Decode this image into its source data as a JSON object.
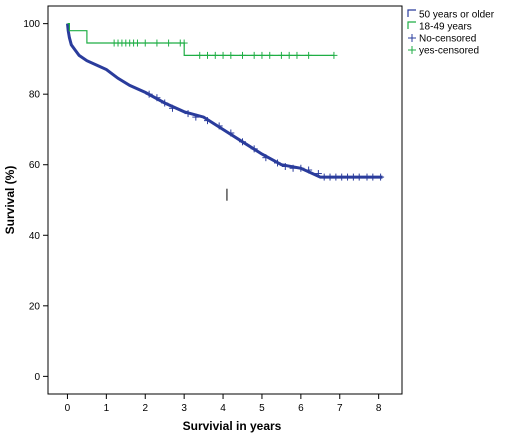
{
  "chart_data": {
    "type": "line",
    "title": "",
    "xlabel": "Survivial in years",
    "ylabel": "Survival (%)",
    "xlim": [
      -0.5,
      8.6
    ],
    "ylim": [
      -5,
      105
    ],
    "x_ticks": [
      0,
      1,
      2,
      3,
      4,
      5,
      6,
      7,
      8
    ],
    "y_ticks": [
      0,
      20,
      40,
      60,
      80,
      100
    ],
    "grid": false,
    "legend_position": "top-right",
    "colors": {
      "older": "#2a3c9c",
      "younger": "#1fae45",
      "axis": "#000000"
    },
    "legend": [
      {
        "label": "50 years or older",
        "kind": "step",
        "color": "#2a3c9c"
      },
      {
        "label": "18-49 years",
        "kind": "step",
        "color": "#1fae45"
      },
      {
        "label": "No-censored",
        "kind": "plus",
        "color": "#2a3c9c"
      },
      {
        "label": "yes-censored",
        "kind": "plus",
        "color": "#1fae45"
      }
    ],
    "series": [
      {
        "name": "50 years or older",
        "color": "#2a3c9c",
        "x": [
          0,
          0.02,
          0.05,
          0.1,
          0.2,
          0.3,
          0.5,
          0.8,
          1.0,
          1.3,
          1.6,
          2.0,
          2.5,
          3.0,
          3.5,
          4.0,
          4.5,
          5.0,
          5.5,
          6.0,
          6.5,
          6.8,
          8.1
        ],
        "y": [
          100,
          98,
          96,
          94,
          92.5,
          91,
          89.5,
          88,
          87,
          84.5,
          82.5,
          80.5,
          77.5,
          75,
          73.5,
          70,
          66.5,
          63,
          60,
          59,
          56.5,
          56.5,
          56.5
        ]
      },
      {
        "name": "18-49 years",
        "color": "#1fae45",
        "x": [
          0,
          0.05,
          0.5,
          3.0,
          6.85
        ],
        "y": [
          100,
          98,
          94.5,
          91,
          91
        ]
      }
    ],
    "censored_older_x": [
      2.1,
      2.3,
      2.5,
      2.7,
      3.1,
      3.3,
      3.6,
      3.9,
      4.2,
      4.5,
      4.8,
      5.1,
      5.4,
      5.6,
      5.8,
      6.0,
      6.2,
      6.45,
      6.6,
      6.75,
      6.9,
      7.05,
      7.2,
      7.35,
      7.5,
      7.7,
      7.85,
      8.05
    ],
    "censored_older_y": [
      80,
      79,
      77.5,
      76,
      74.5,
      73.5,
      72.5,
      71,
      69,
      66.5,
      64.5,
      62,
      60.5,
      59.5,
      59,
      59,
      58.5,
      57.5,
      56.5,
      56.5,
      56.5,
      56.5,
      56.5,
      56.5,
      56.5,
      56.5,
      56.5,
      56.5
    ],
    "censored_younger_x": [
      1.2,
      1.3,
      1.4,
      1.5,
      1.6,
      1.7,
      1.8,
      2.0,
      2.3,
      2.6,
      2.9,
      3.0,
      3.4,
      3.6,
      3.8,
      4.0,
      4.2,
      4.5,
      4.8,
      5.0,
      5.2,
      5.5,
      5.7,
      5.9,
      6.2,
      6.85
    ],
    "censored_younger_y": [
      94.5,
      94.5,
      94.5,
      94.5,
      94.5,
      94.5,
      94.5,
      94.5,
      94.5,
      94.5,
      94.5,
      94.5,
      91,
      91,
      91,
      91,
      91,
      91,
      91,
      91,
      91,
      91,
      91,
      91,
      91,
      91
    ],
    "annotation_mark": {
      "x": 4.1,
      "y": 51.5
    }
  }
}
